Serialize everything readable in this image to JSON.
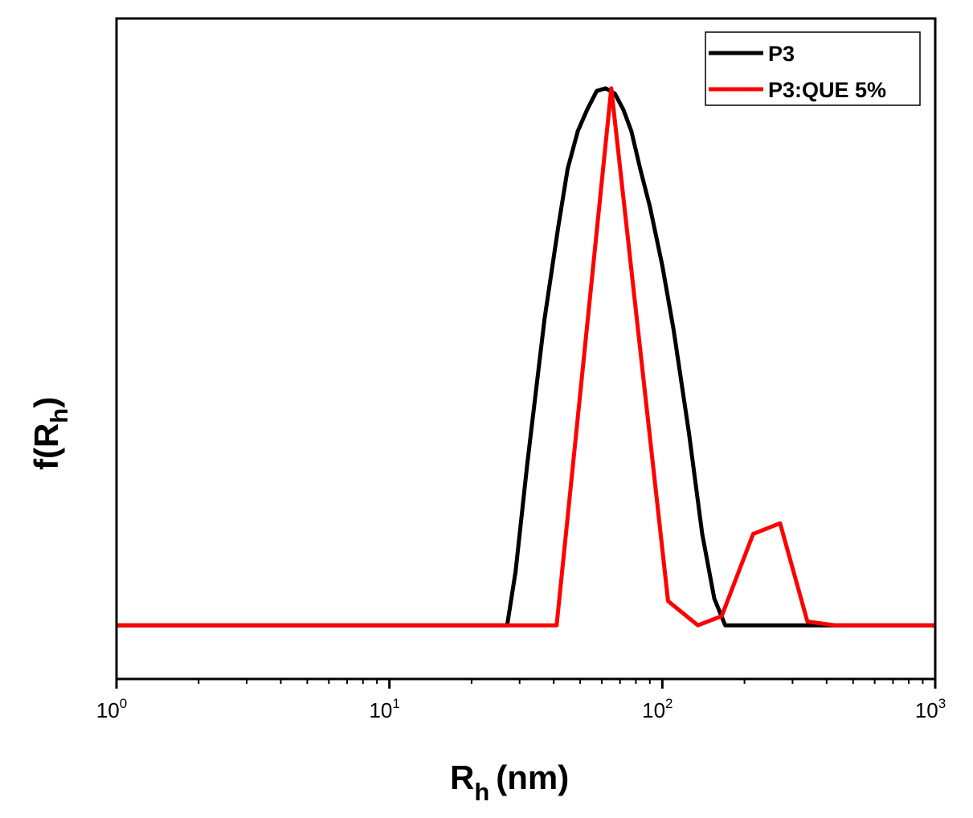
{
  "chart_data": {
    "type": "line",
    "title": "",
    "xlabel": {
      "main": "R",
      "subscript": "h",
      "unit": "(nm)"
    },
    "ylabel": {
      "main": "f(R",
      "subscript": "h",
      "close": ")"
    },
    "x_scale": "log",
    "xlim": [
      1,
      1000
    ],
    "ylim": [
      -0.1,
      1.13
    ],
    "y_ticks_labeled": false,
    "grid": false,
    "legend_position": "top-right",
    "x_ticks": [
      {
        "base": "10",
        "exp": "0",
        "value": 1
      },
      {
        "base": "10",
        "exp": "1",
        "value": 10
      },
      {
        "base": "10",
        "exp": "2",
        "value": 100
      },
      {
        "base": "10",
        "exp": "3",
        "value": 1000
      }
    ],
    "series": [
      {
        "name": "P3",
        "color": "#000000",
        "points": [
          [
            1,
            0
          ],
          [
            27,
            0
          ],
          [
            29,
            0.1
          ],
          [
            32,
            0.3
          ],
          [
            37,
            0.57
          ],
          [
            41.5,
            0.74
          ],
          [
            45,
            0.85
          ],
          [
            49,
            0.92
          ],
          [
            53,
            0.96
          ],
          [
            57.5,
            0.995
          ],
          [
            62,
            1.0
          ],
          [
            67,
            0.99
          ],
          [
            72,
            0.96
          ],
          [
            77,
            0.92
          ],
          [
            83,
            0.85
          ],
          [
            90,
            0.78
          ],
          [
            100,
            0.67
          ],
          [
            110,
            0.55
          ],
          [
            125,
            0.36
          ],
          [
            140,
            0.17
          ],
          [
            155,
            0.05
          ],
          [
            170,
            0
          ],
          [
            200,
            0
          ],
          [
            300,
            0
          ],
          [
            500,
            0
          ],
          [
            1000,
            0
          ]
        ]
      },
      {
        "name": "P3:QUE 5%",
        "color": "#ff0000",
        "points": [
          [
            1,
            0
          ],
          [
            41,
            0
          ],
          [
            65,
            1.0
          ],
          [
            105,
            0.045
          ],
          [
            135,
            0.0
          ],
          [
            165,
            0.017
          ],
          [
            215,
            0.17
          ],
          [
            270,
            0.19
          ],
          [
            340,
            0.007
          ],
          [
            430,
            0
          ],
          [
            1000,
            0
          ]
        ]
      }
    ]
  }
}
